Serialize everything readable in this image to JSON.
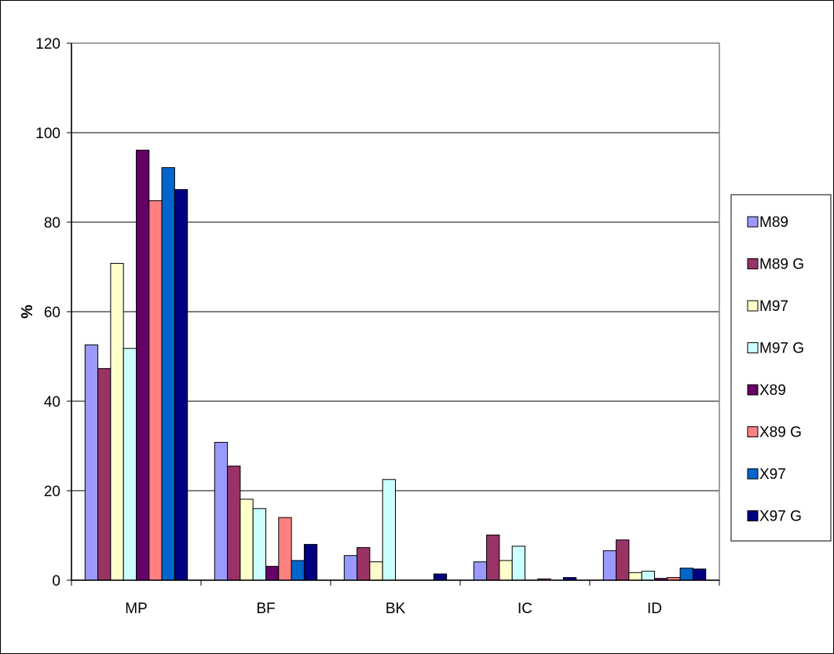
{
  "chart_data": {
    "type": "bar",
    "title": "",
    "xlabel": "",
    "ylabel": "%",
    "ylim": [
      0,
      120
    ],
    "yticks": [
      "0",
      "20",
      "40",
      "60",
      "80",
      "100",
      "120"
    ],
    "grid": true,
    "legend_position": "right",
    "categories": [
      "MP",
      "BF",
      "BK",
      "IC",
      "ID"
    ],
    "series": [
      {
        "name": "M89",
        "color": "#9999ff",
        "values": [
          52.6,
          30.8,
          5.5,
          4.1,
          6.6
        ]
      },
      {
        "name": "M89 G",
        "color": "#993366",
        "values": [
          47.3,
          25.5,
          7.3,
          10.1,
          9.0
        ]
      },
      {
        "name": "M97",
        "color": "#ffffcc",
        "values": [
          70.8,
          18.1,
          4.1,
          4.4,
          1.7
        ]
      },
      {
        "name": "M97 G",
        "color": "#ccffff",
        "values": [
          51.8,
          16.0,
          22.5,
          7.6,
          2.0
        ]
      },
      {
        "name": "X89",
        "color": "#660066",
        "values": [
          96.1,
          3.1,
          0.0,
          0.0,
          0.4
        ]
      },
      {
        "name": "X89 G",
        "color": "#ff8080",
        "values": [
          84.8,
          14.0,
          0.0,
          0.3,
          0.6
        ]
      },
      {
        "name": "X97",
        "color": "#0066cc",
        "values": [
          92.2,
          4.4,
          0.0,
          0.0,
          2.7
        ]
      },
      {
        "name": "X97 G",
        "color": "#000080",
        "values": [
          87.3,
          8.0,
          1.4,
          0.6,
          2.5
        ]
      }
    ]
  }
}
